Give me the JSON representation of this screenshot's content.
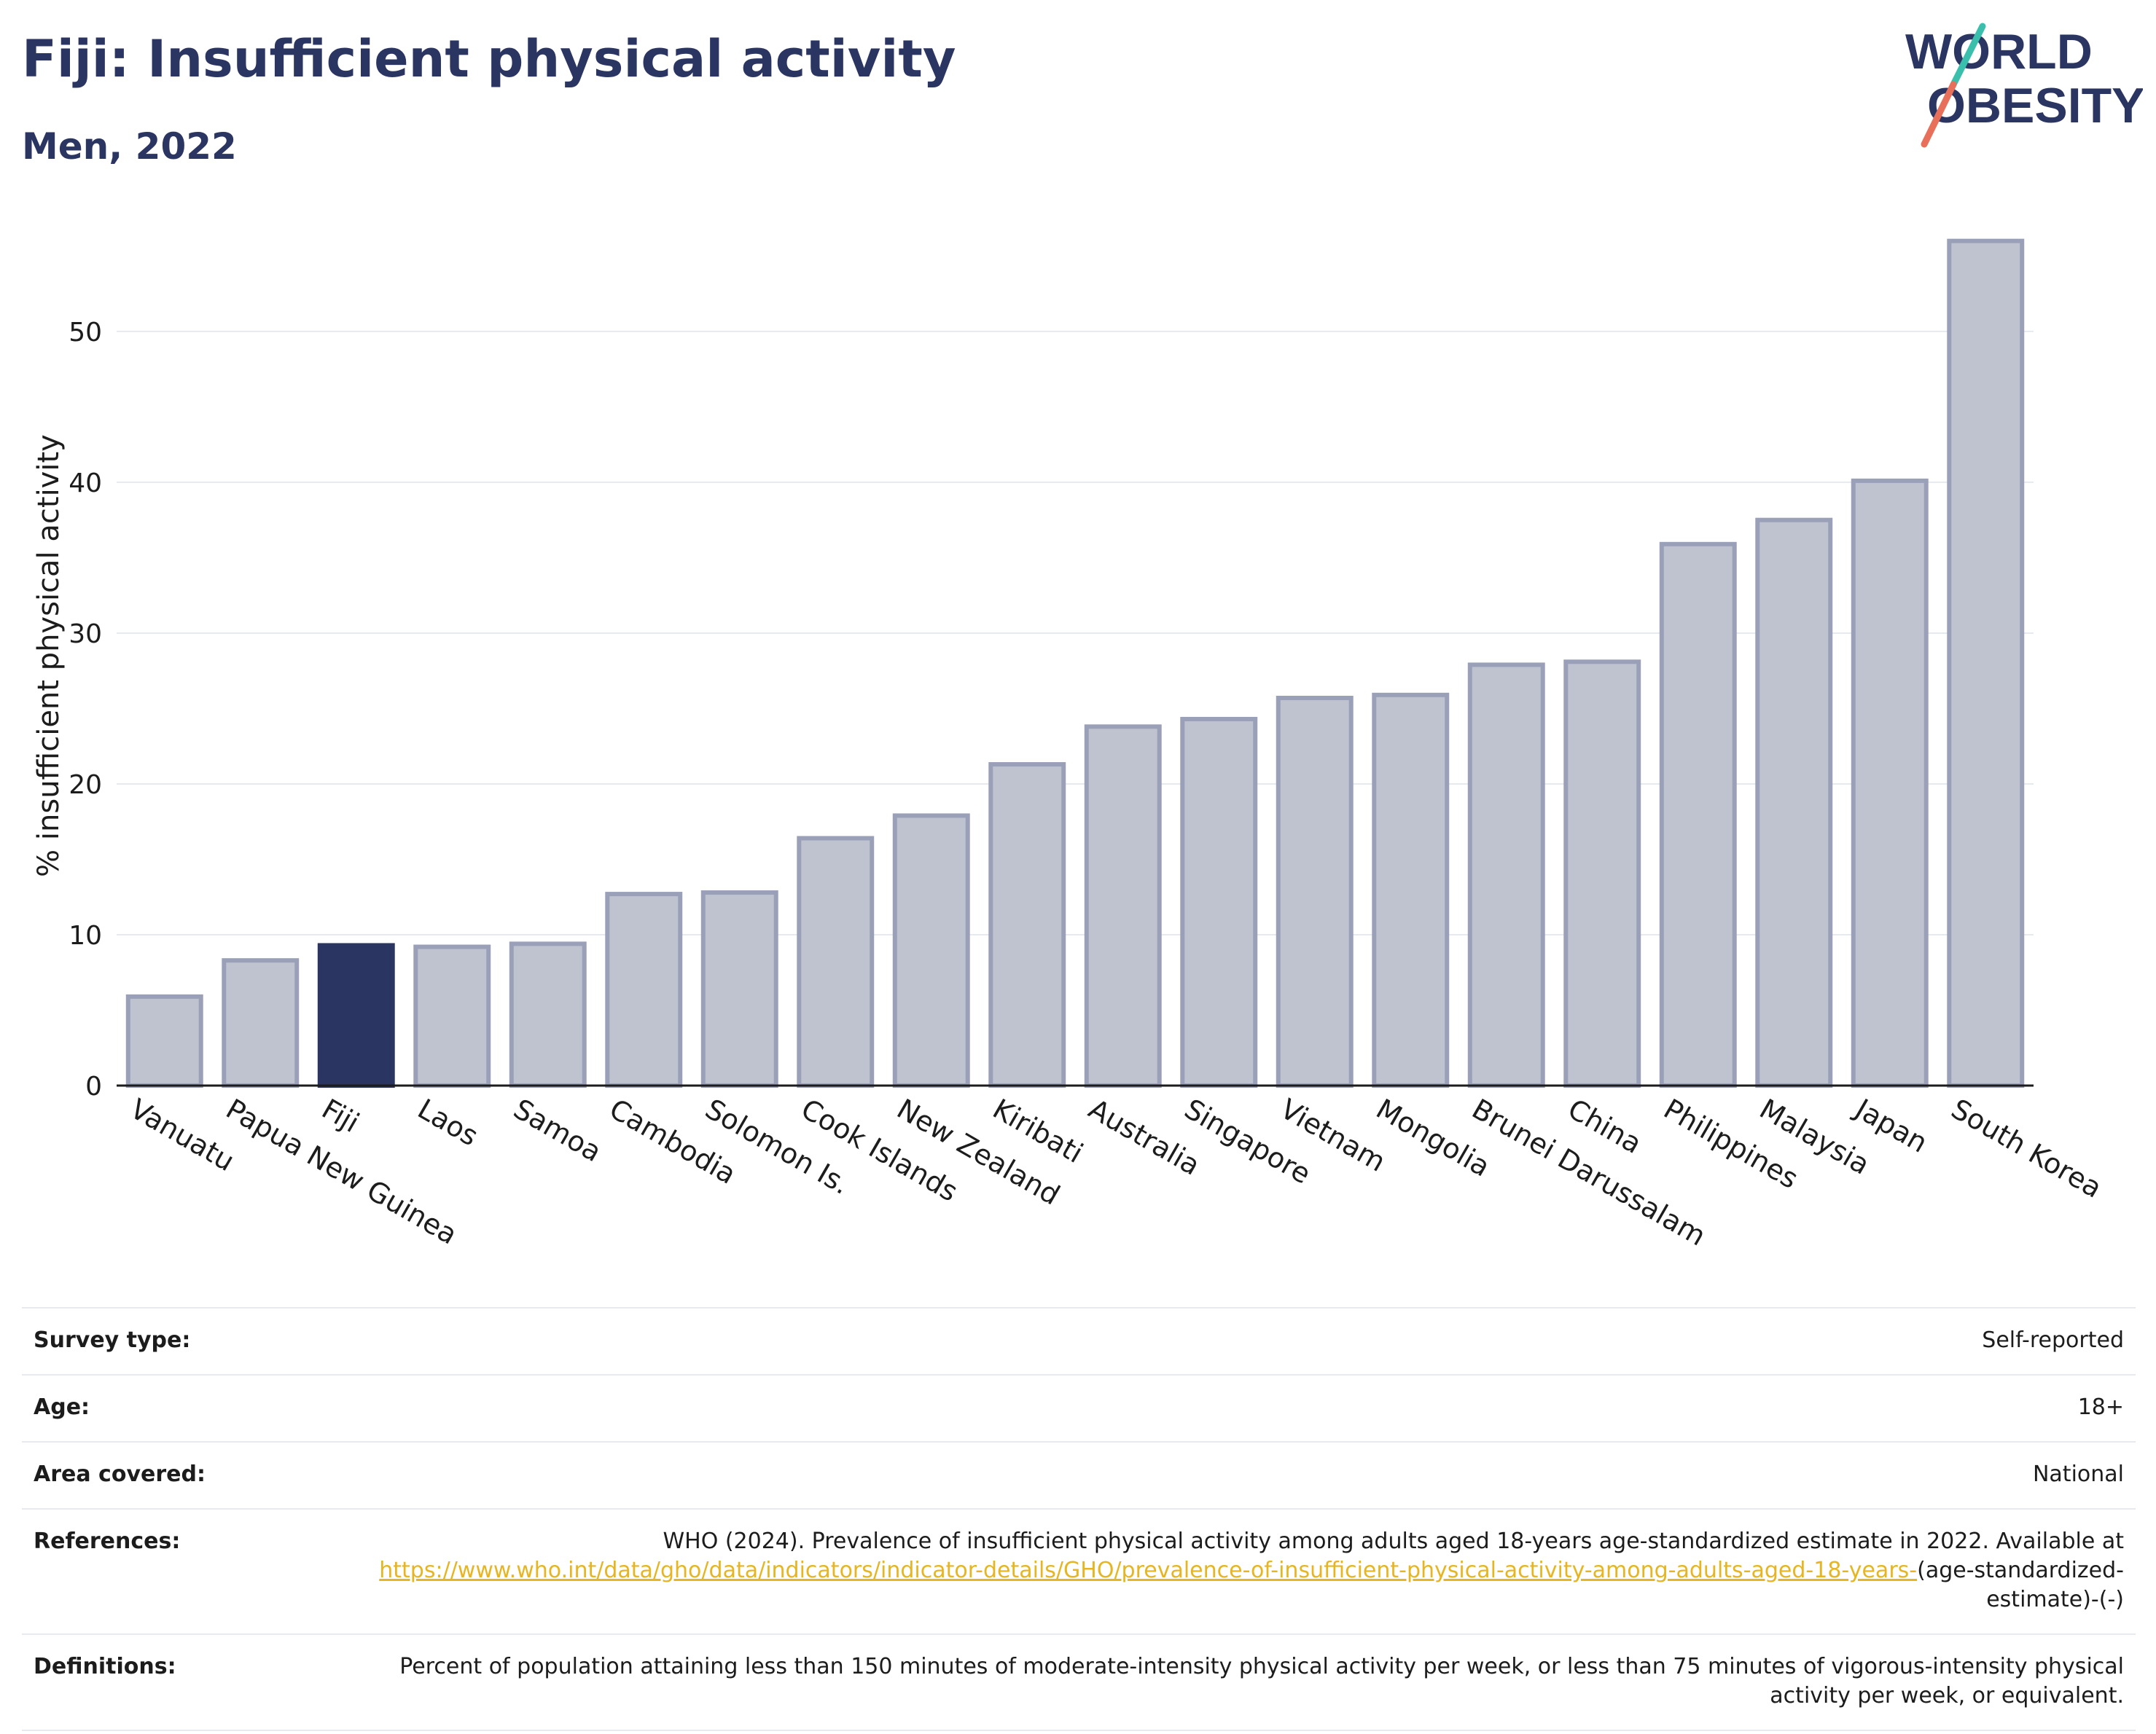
{
  "header": {
    "title": "Fiji: Insufficient physical activity",
    "subtitle": "Men, 2022"
  },
  "logo": {
    "line1": "WORLD",
    "line2": "OBESITY",
    "colors": {
      "text": "#2b3561",
      "slash_top": "#3bbfad",
      "slash_bottom": "#e8705a"
    }
  },
  "chart_data": {
    "type": "bar",
    "ylabel": "% insufficient physical activity",
    "xlabel": "",
    "ylim": [
      0,
      57
    ],
    "yticks": [
      0,
      10,
      20,
      30,
      40,
      50
    ],
    "grid": true,
    "categories": [
      "Vanuatu",
      "Papua New Guinea",
      "Fiji",
      "Laos",
      "Samoa",
      "Cambodia",
      "Solomon Is.",
      "Cook Islands",
      "New Zealand",
      "Kiribati",
      "Australia",
      "Singapore",
      "Vietnam",
      "Mongolia",
      "Brunei Darussalam",
      "China",
      "Philippines",
      "Malaysia",
      "Japan",
      "South Korea"
    ],
    "values": [
      5.9,
      8.3,
      9.3,
      9.2,
      9.4,
      12.7,
      12.8,
      16.4,
      17.9,
      21.3,
      23.8,
      24.3,
      25.7,
      25.9,
      27.9,
      28.1,
      35.9,
      37.5,
      40.1,
      56.0
    ],
    "highlight": "Fiji",
    "colors": {
      "highlight": "#2b3561",
      "bar": "#bfc2cf",
      "bar_border": "#9aa0b8",
      "grid": "#e6e9ee"
    }
  },
  "info": {
    "survey_type": {
      "label": "Survey type:",
      "value": "Self-reported"
    },
    "age": {
      "label": "Age:",
      "value": "18+"
    },
    "area": {
      "label": "Area covered:",
      "value": "National"
    },
    "references": {
      "label": "References:",
      "text": "WHO (2024). Prevalence of insufficient physical activity among adults aged 18-years age-standardized estimate in 2022. Available at",
      "link": "https://www.who.int/data/gho/data/indicators/indicator-details/GHO/prevalence-of-insufficient-physical-activity-among-adults-aged-18-years-",
      "suffix": "(age-standardized-estimate)-(-)"
    },
    "definitions": {
      "label": "Definitions:",
      "value": "Percent of population attaining less than 150 minutes of moderate-intensity physical activity per week, or less than 75 minutes of vigorous-intensity physical activity per week, or equivalent."
    }
  }
}
